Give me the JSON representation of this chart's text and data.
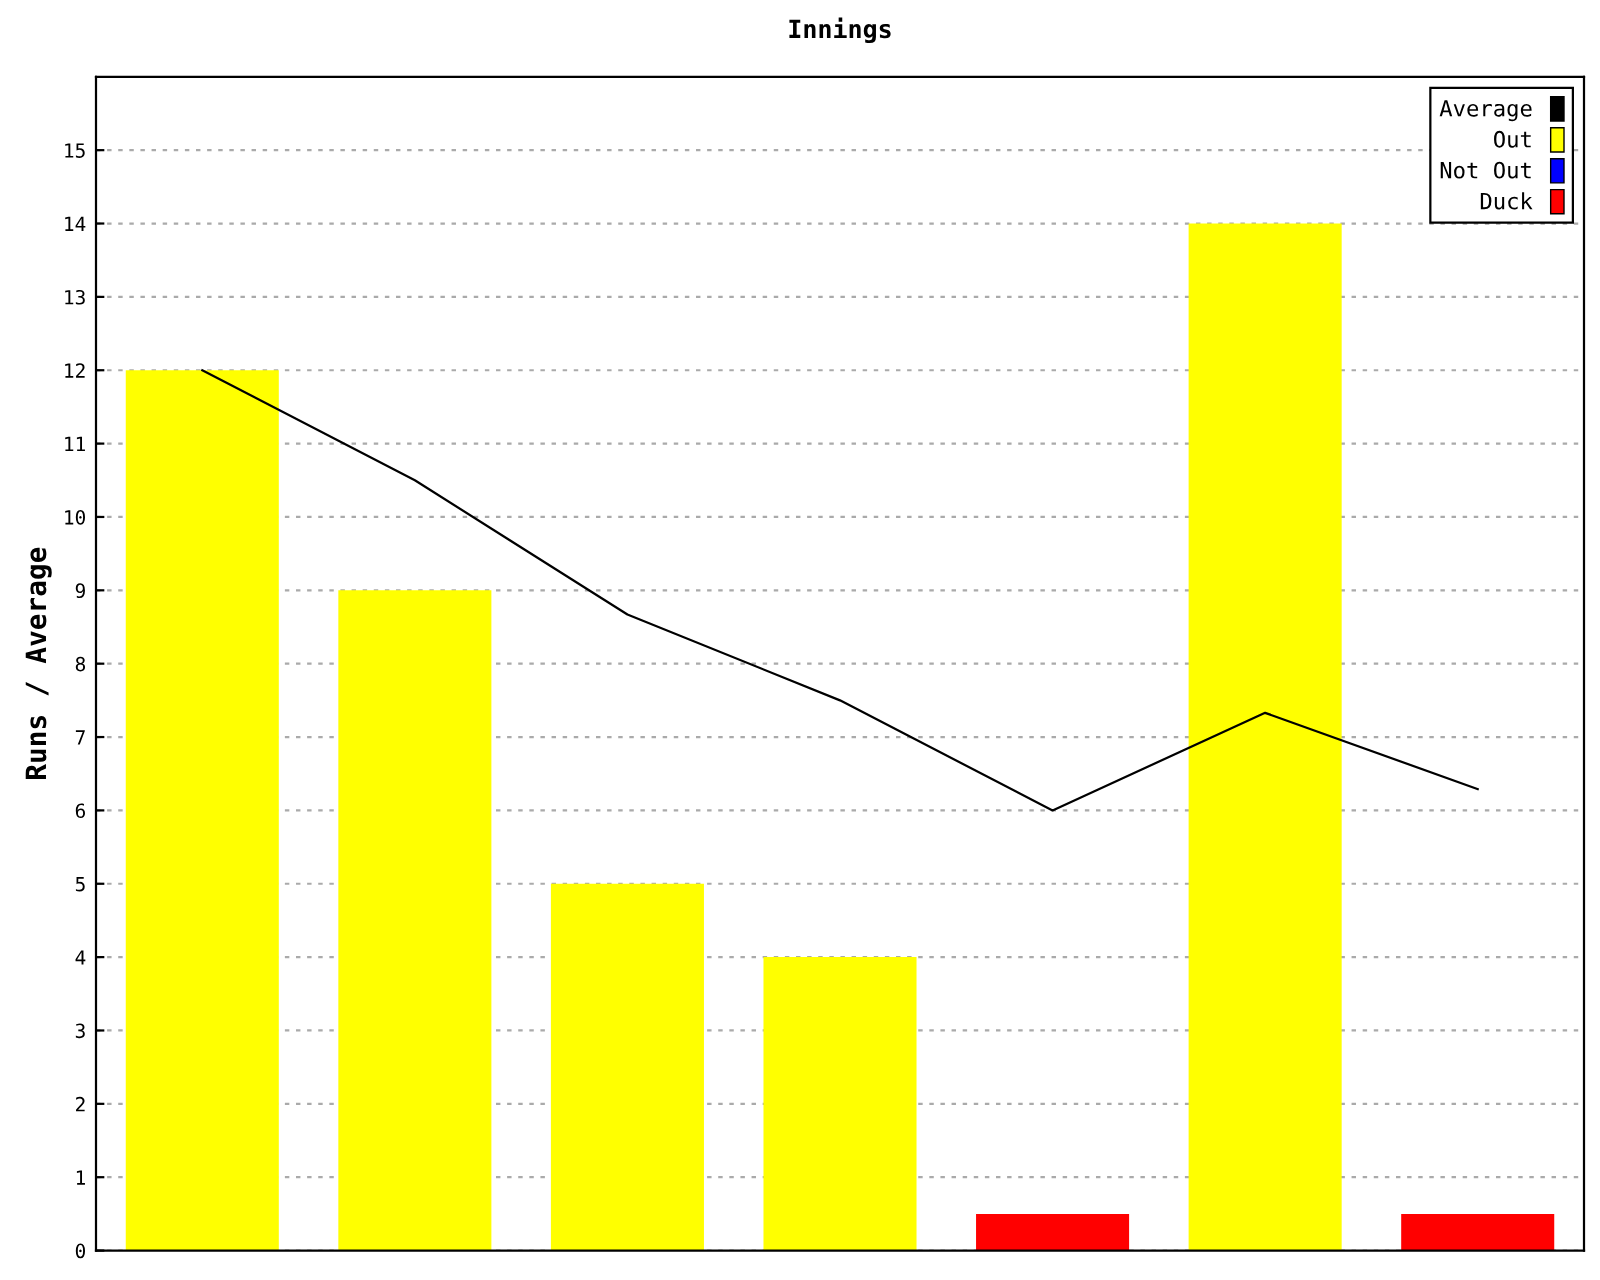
{
  "chart_data": {
    "type": "bar",
    "title": "Innings",
    "ylabel": "Runs / Average",
    "categories": [
      null,
      null,
      null,
      null,
      null,
      null,
      null
    ],
    "series": [
      {
        "name": "Average",
        "type": "line",
        "color": "#000000",
        "values": [
          12,
          10.5,
          8.67,
          7.5,
          6,
          7.33,
          6.29
        ]
      },
      {
        "name": "Out",
        "color": "#ffff00",
        "values": [
          12,
          9,
          5,
          4,
          null,
          14,
          null
        ]
      },
      {
        "name": "Not Out",
        "color": "#0000ff",
        "values": [
          null,
          null,
          null,
          null,
          null,
          null,
          null
        ]
      },
      {
        "name": "Duck",
        "color": "#ff0000",
        "values": [
          null,
          null,
          null,
          null,
          0.5,
          null,
          0.5
        ]
      }
    ],
    "ylim": [
      0,
      16
    ],
    "yticks": [
      0,
      1,
      2,
      3,
      4,
      5,
      6,
      7,
      8,
      9,
      10,
      11,
      12,
      13,
      14,
      15
    ],
    "grid": "y",
    "legend": "top right",
    "marker": "none",
    "line_style": "solid"
  }
}
